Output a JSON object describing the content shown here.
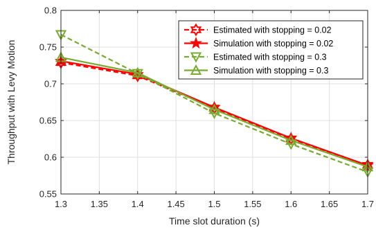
{
  "chart_data": {
    "type": "line",
    "title": "",
    "xlabel": "Time slot duration (s)",
    "ylabel": "Throughput with Levy Motion",
    "xlim": [
      1.3,
      1.7
    ],
    "ylim": [
      0.55,
      0.8
    ],
    "xticks": [
      1.3,
      1.35,
      1.4,
      1.45,
      1.5,
      1.55,
      1.6,
      1.65,
      1.7
    ],
    "yticks": [
      0.55,
      0.6,
      0.65,
      0.7,
      0.75,
      0.8
    ],
    "xtick_labels": [
      "1.3",
      "1.35",
      "1.4",
      "1.45",
      "1.5",
      "1.55",
      "1.6",
      "1.65",
      "1.7"
    ],
    "ytick_labels": [
      "0.55",
      "0.6",
      "0.65",
      "0.7",
      "0.75",
      "0.8"
    ],
    "grid": true,
    "legend_position": "top-right",
    "series": [
      {
        "name": "Estimated with stopping = 0.02",
        "x": [
          1.3,
          1.4,
          1.5,
          1.6,
          1.7
        ],
        "y": [
          0.729,
          0.711,
          0.667,
          0.625,
          0.589
        ],
        "color": "#ff0000",
        "dash": "dashed",
        "marker": "hexagram"
      },
      {
        "name": "Simulation with stopping = 0.02",
        "x": [
          1.3,
          1.4,
          1.5,
          1.6,
          1.7
        ],
        "y": [
          0.731,
          0.713,
          0.668,
          0.626,
          0.589
        ],
        "color": "#ff0000",
        "dash": "solid",
        "marker": "pentagram"
      },
      {
        "name": "Estimated with stopping = 0.3",
        "x": [
          1.3,
          1.4,
          1.5,
          1.6,
          1.7
        ],
        "y": [
          0.767,
          0.714,
          0.66,
          0.618,
          0.58
        ],
        "color": "#77ac30",
        "dash": "dashed",
        "marker": "triangle-down"
      },
      {
        "name": "Simulation with stopping = 0.3",
        "x": [
          1.3,
          1.4,
          1.5,
          1.6,
          1.7
        ],
        "y": [
          0.736,
          0.715,
          0.665,
          0.623,
          0.587
        ],
        "color": "#77ac30",
        "dash": "solid",
        "marker": "triangle-up"
      }
    ]
  }
}
